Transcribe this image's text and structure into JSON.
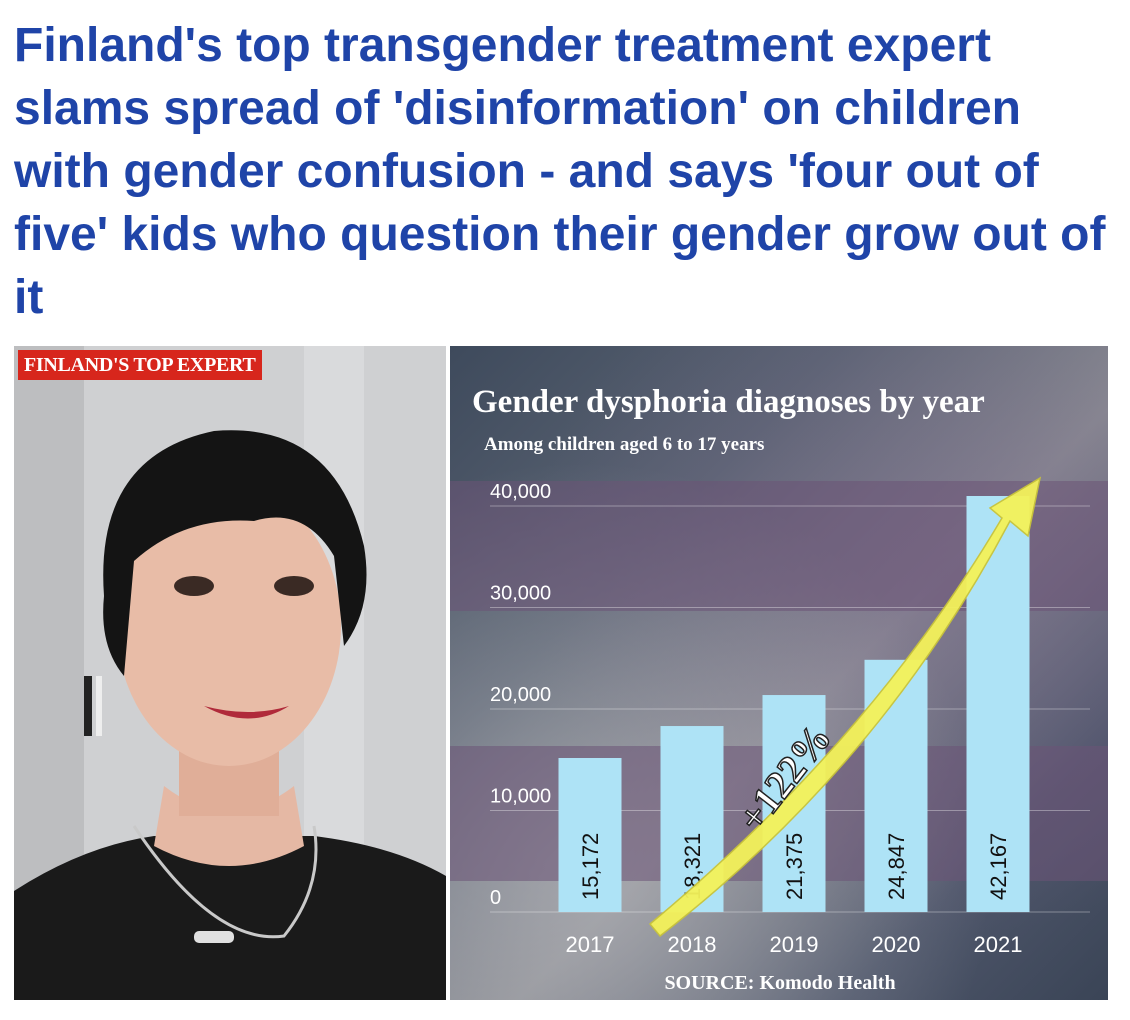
{
  "article": {
    "headline": "Finland's top transgender treatment expert slams spread of 'disinformation' on children with gender confusion - and says 'four out of five' kids who question their gender grow out of it"
  },
  "photo": {
    "badge": "FINLAND'S TOP EXPERT",
    "badge_color": "#d7261c"
  },
  "chart_data": {
    "type": "bar",
    "title": "Gender dysphoria diagnoses by year",
    "subtitle": "Among children aged 6 to 17 years",
    "source": "SOURCE: Komodo Health",
    "categories": [
      "2017",
      "2018",
      "2019",
      "2020",
      "2021"
    ],
    "values": [
      15172,
      18321,
      21375,
      24847,
      42167
    ],
    "value_labels": [
      "15,172",
      "18,321",
      "21,375",
      "24,847",
      "42,167"
    ],
    "ylim": [
      0,
      40000
    ],
    "yticks": [
      0,
      10000,
      20000,
      30000,
      40000
    ],
    "ytick_labels": [
      "0",
      "10,000",
      "20,000",
      "30,000",
      "40,000"
    ],
    "grid": true,
    "annotation": "+122%",
    "bar_color": "#aee3f6",
    "arrow_color": "#f4f25a"
  }
}
